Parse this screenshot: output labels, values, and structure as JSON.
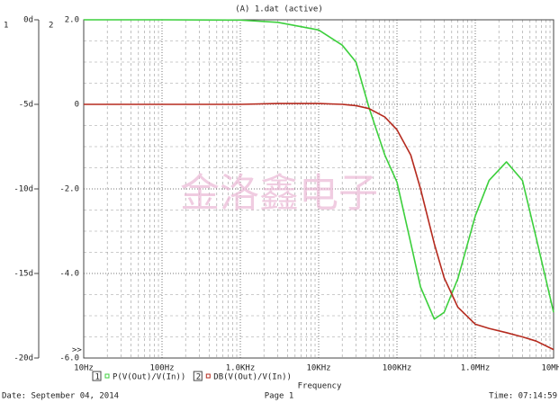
{
  "title": "(A) 1.dat (active)",
  "watermark": "金洛鑫电子",
  "footer": {
    "date": "Date: September 04, 2014",
    "page": "Page 1",
    "time": "Time: 07:14:59"
  },
  "chart_data": {
    "type": "line",
    "x_label": "Frequency",
    "y_axis_label": "1",
    "y2_axis_label": "2",
    "xlog": true,
    "xlim": [
      10,
      10000000
    ],
    "xticks": [
      {
        "value": 10,
        "label": "10Hz"
      },
      {
        "value": 100,
        "label": "100Hz"
      },
      {
        "value": 1000,
        "label": "1.0KHz"
      },
      {
        "value": 10000,
        "label": "10KHz"
      },
      {
        "value": 100000,
        "label": "100KHz"
      },
      {
        "value": 1000000,
        "label": "1.0MHz"
      },
      {
        "value": 10000000,
        "label": "10MHz"
      }
    ],
    "ylim": [
      -20,
      0
    ],
    "yticks": [
      {
        "value": 0,
        "label": "0d"
      },
      {
        "value": -5,
        "label": "-5d"
      },
      {
        "value": -10,
        "label": "-10d"
      },
      {
        "value": -15,
        "label": "-15d"
      },
      {
        "value": -20,
        "label": "-20d"
      }
    ],
    "y2lim": [
      -6,
      2
    ],
    "y2ticks": [
      {
        "value": 2,
        "label": "2.0"
      },
      0,
      {
        "value": -2,
        "label": "-2.0"
      },
      {
        "value": -4,
        "label": "-4.0"
      },
      {
        "value": -6,
        "label": "-6.0"
      }
    ],
    "grid": true,
    "x": [
      10,
      100,
      1000,
      3000,
      10000,
      20000,
      30000,
      44000,
      70000,
      100000,
      150000,
      200000,
      300000,
      400000,
      600000,
      1000000,
      1500000,
      2500000,
      4000000,
      6000000,
      10000000
    ],
    "series": [
      {
        "id": "1",
        "name": "P(V(Out)/V(In))",
        "color": "#3ccf3c",
        "axis": "y",
        "values": [
          0,
          0,
          -0.02,
          -0.15,
          -0.6,
          -1.5,
          -2.5,
          -5.2,
          -8,
          -9.6,
          -13.2,
          -15.8,
          -17.7,
          -17.3,
          -15.3,
          -11.6,
          -9.5,
          -8.4,
          -9.5,
          -12.9,
          -17.3
        ]
      },
      {
        "id": "2",
        "name": "DB(V(Out)/V(In))",
        "color": "#b52a1e",
        "axis": "y2",
        "values": [
          0,
          0,
          0,
          0.02,
          0.02,
          0,
          -0.03,
          -0.1,
          -0.3,
          -0.6,
          -1.2,
          -2.0,
          -3.3,
          -4.1,
          -4.8,
          -5.2,
          -5.3,
          -5.4,
          -5.5,
          -5.6,
          -5.8
        ]
      }
    ]
  }
}
